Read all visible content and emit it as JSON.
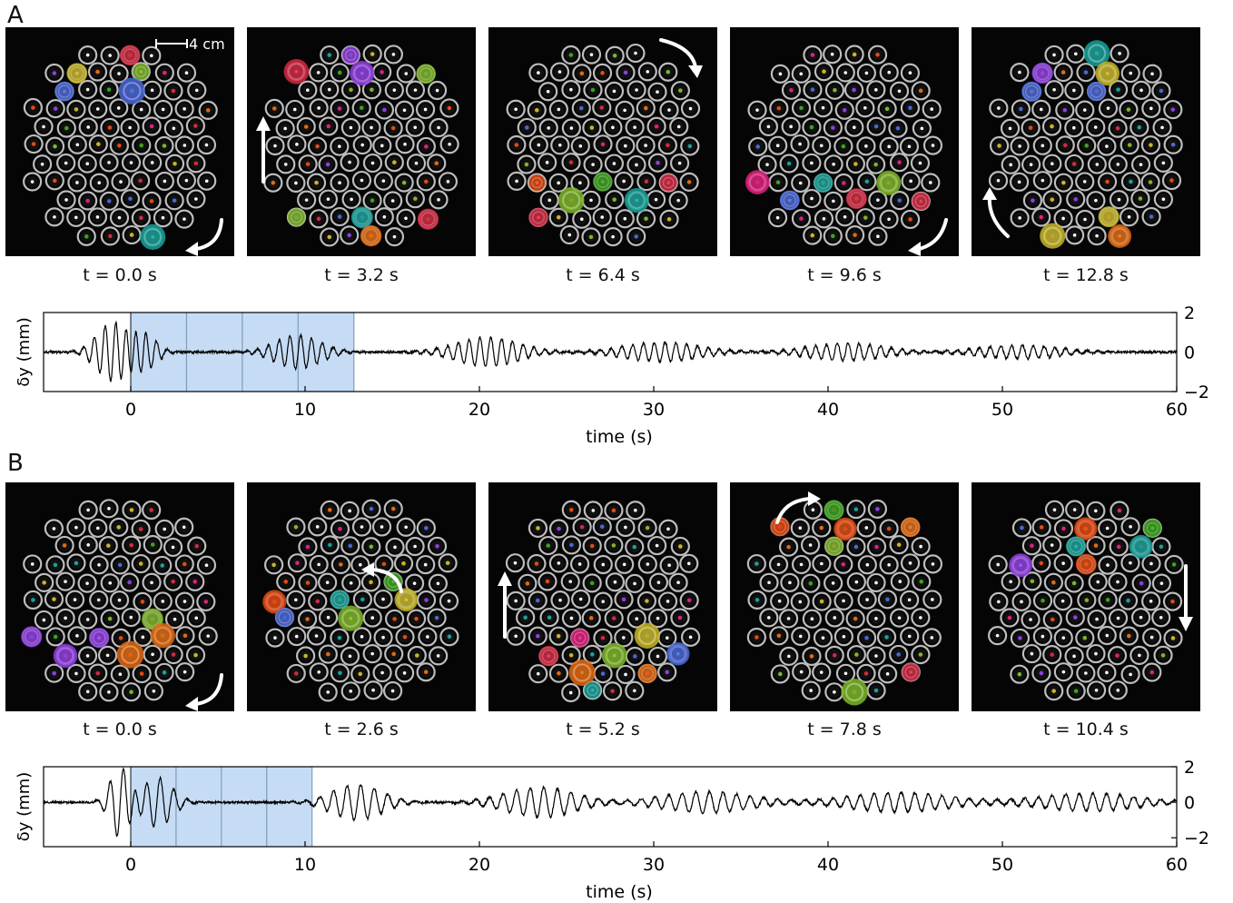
{
  "panels": [
    {
      "letter": "A",
      "scale_bar_label": "4 cm",
      "frames": [
        {
          "caption": "t = 0.0 s",
          "arrow": "curve-up-left"
        },
        {
          "caption": "t = 3.2 s",
          "arrow": "up"
        },
        {
          "caption": "t = 6.4 s",
          "arrow": "curve-down-right"
        },
        {
          "caption": "t = 9.6 s",
          "arrow": "curve-down-left"
        },
        {
          "caption": "t = 12.8 s",
          "arrow": "curve-up"
        }
      ],
      "chart_data": {
        "type": "line",
        "xlabel": "time (s)",
        "ylabel": "δy (mm)",
        "xlim": [
          -5,
          60
        ],
        "ylim": [
          -2,
          2
        ],
        "xticks": [
          0,
          10,
          20,
          30,
          40,
          50,
          60
        ],
        "yticks": [
          2,
          0,
          -2
        ],
        "ytick_labels": [
          "2",
          "0",
          "−2"
        ],
        "shaded_region": [
          0,
          12.8
        ],
        "frame_lines": [
          0,
          3.2,
          6.4,
          9.6,
          12.8
        ],
        "noise_amplitude_mm": 0.1,
        "wave_packets": [
          {
            "center": -1.0,
            "width": 1.3,
            "amplitude": 1.5
          },
          {
            "center": 0.7,
            "width": 1.0,
            "amplitude": 1.0
          },
          {
            "center": 9.6,
            "width": 1.8,
            "amplitude": 0.85
          },
          {
            "center": 20.5,
            "width": 2.5,
            "amplitude": 0.75
          },
          {
            "center": 30.5,
            "width": 3.0,
            "amplitude": 0.5
          },
          {
            "center": 41.0,
            "width": 3.0,
            "amplitude": 0.45
          },
          {
            "center": 51.0,
            "width": 3.2,
            "amplitude": 0.35
          }
        ],
        "period_s": 0.62
      }
    },
    {
      "letter": "B",
      "frames": [
        {
          "caption": "t = 0.0 s",
          "arrow": "curve-up-left"
        },
        {
          "caption": "t = 2.6 s",
          "arrow": "curve-left"
        },
        {
          "caption": "t = 5.2 s",
          "arrow": "up"
        },
        {
          "caption": "t = 7.8 s",
          "arrow": "curve-up-right"
        },
        {
          "caption": "t = 10.4 s",
          "arrow": "down"
        }
      ],
      "chart_data": {
        "type": "line",
        "xlabel": "time (s)",
        "ylabel": "δy (mm)",
        "xlim": [
          -5,
          60
        ],
        "ylim": [
          -2.5,
          2
        ],
        "xticks": [
          0,
          10,
          20,
          30,
          40,
          50,
          60
        ],
        "yticks": [
          2,
          0,
          -2
        ],
        "ytick_labels": [
          "2",
          "0",
          "−2"
        ],
        "shaded_region": [
          0,
          10.4
        ],
        "frame_lines": [
          0,
          2.6,
          5.2,
          7.8,
          10.4
        ],
        "noise_amplitude_mm": 0.1,
        "wave_packets": [
          {
            "center": -0.6,
            "width": 0.8,
            "amplitude": 2.0
          },
          {
            "center": 1.5,
            "width": 1.2,
            "amplitude": 1.4
          },
          {
            "center": 13.0,
            "width": 2.0,
            "amplitude": 1.0
          },
          {
            "center": 23.5,
            "width": 2.8,
            "amplitude": 0.85
          },
          {
            "center": 33.0,
            "width": 3.5,
            "amplitude": 0.6
          },
          {
            "center": 44.0,
            "width": 4.0,
            "amplitude": 0.55
          },
          {
            "center": 55.0,
            "width": 4.0,
            "amplitude": 0.5
          }
        ],
        "period_s": 0.78
      }
    }
  ],
  "colors": {
    "shade": "#c6dcf5",
    "shade_lines": "#7e9cb9",
    "trace": "#000000",
    "frame_background": "#050505",
    "particle_palette": [
      "#8f3fe0",
      "#e0207e",
      "#e34a12",
      "#c6b52a",
      "#3da31e",
      "#e06b14",
      "#1aa19a",
      "#4a67d6",
      "#d22a43",
      "#7fb52a"
    ]
  }
}
